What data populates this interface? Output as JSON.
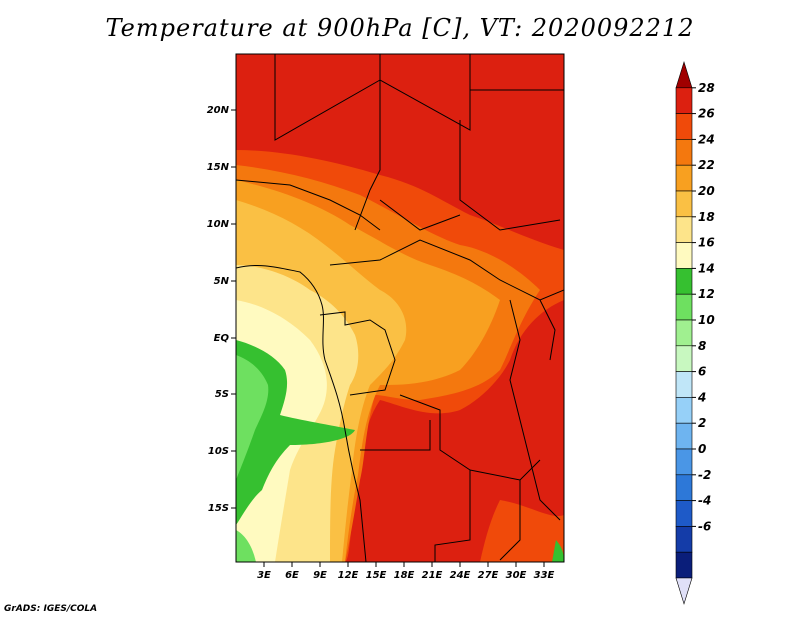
{
  "title": "Temperature at 900hPa [C], VT: 2020092212",
  "credit": "GrADS: IGES/COLA",
  "axes": {
    "lat_labels": [
      "20N",
      "15N",
      "10N",
      "5N",
      "EQ",
      "5S",
      "10S",
      "15S"
    ],
    "lon_labels": [
      "3E",
      "6E",
      "9E",
      "12E",
      "15E",
      "18E",
      "21E",
      "24E",
      "27E",
      "30E",
      "33E"
    ]
  },
  "colorbar": {
    "labels": [
      "28",
      "26",
      "24",
      "22",
      "20",
      "18",
      "16",
      "14",
      "12",
      "10",
      "8",
      "6",
      "4",
      "2",
      "0",
      "-2",
      "-4",
      "-6"
    ],
    "colors": [
      "#a00000",
      "#dc2010",
      "#f04a0a",
      "#f4780e",
      "#f8a020",
      "#fac044",
      "#fde48a",
      "#fffac0",
      "#36c030",
      "#6ee060",
      "#a0f090",
      "#c8f8c0",
      "#c0e6f8",
      "#96d0f8",
      "#6eb4f0",
      "#4a96e6",
      "#2d78d8",
      "#1e5ac8",
      "#143ca8",
      "#0a1e7a",
      "#e0e0f8"
    ]
  }
}
